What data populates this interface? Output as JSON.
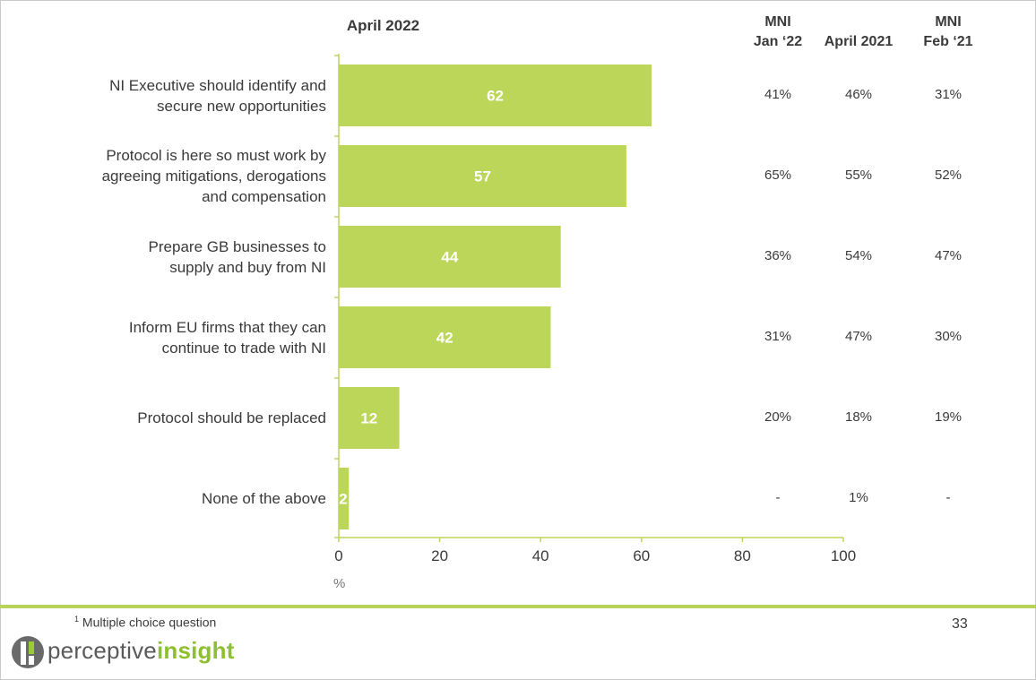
{
  "chart_data": {
    "type": "bar",
    "orientation": "horizontal",
    "title": "April 2022",
    "categories": [
      [
        "NI Executive should identify and",
        "secure new opportunities"
      ],
      [
        "Protocol is here so must work by",
        "agreeing mitigations, derogations",
        "and compensation"
      ],
      [
        "Prepare GB businesses to",
        "supply and buy from NI"
      ],
      [
        "Inform EU firms that they can",
        "continue to trade with NI"
      ],
      [
        "Protocol should be replaced"
      ],
      [
        "None of the above"
      ]
    ],
    "values": [
      62,
      57,
      44,
      42,
      12,
      2
    ],
    "xlim": [
      0,
      100
    ],
    "xticks": [
      "0",
      "20",
      "40",
      "60",
      "80",
      "100"
    ],
    "xunit": "%",
    "bar_color": "#bcd65a",
    "comparison_headers": [
      [
        "MNI",
        "Jan ‘22"
      ],
      [
        "April 2021"
      ],
      [
        "MNI",
        "Feb ‘21"
      ]
    ],
    "comparison_values": [
      [
        "41%",
        "46%",
        "31%"
      ],
      [
        "65%",
        "55%",
        "52%"
      ],
      [
        "36%",
        "54%",
        "47%"
      ],
      [
        "31%",
        "47%",
        "30%"
      ],
      [
        "20%",
        "18%",
        "19%"
      ],
      [
        "-",
        "1%",
        "-"
      ]
    ]
  },
  "footer": {
    "note_marker": "1",
    "note": "Multiple choice question",
    "page_number": "33",
    "logo_text_regular": "perceptive",
    "logo_text_bold": "insight"
  }
}
